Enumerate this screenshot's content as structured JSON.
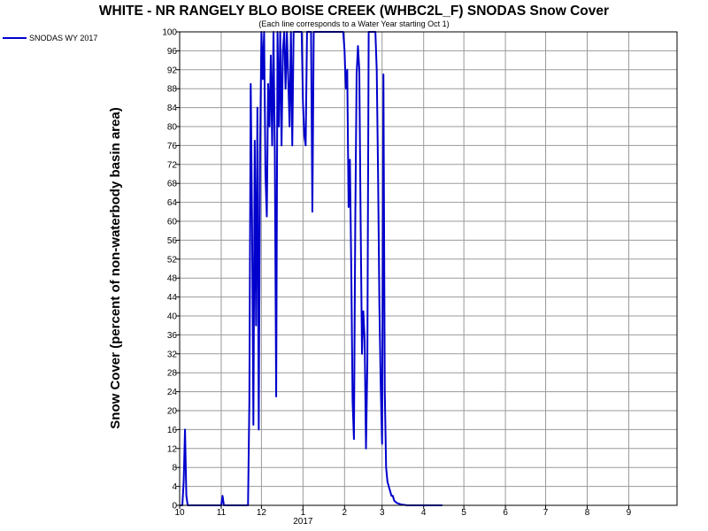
{
  "chart_data": {
    "type": "line",
    "title": "WHITE - NR RANGELY BLO BOISE CREEK (WHBC2L_F) SNODAS Snow Cover",
    "subtitle": "(Each line corresponds to a Water Year starting Oct 1)",
    "ylabel": "Snow Cover (percent of non-waterbody basin area)",
    "xlabel": "",
    "ylim": [
      0,
      100
    ],
    "y_ticks": [
      0,
      4,
      8,
      12,
      16,
      20,
      24,
      28,
      32,
      36,
      40,
      44,
      48,
      52,
      56,
      60,
      64,
      68,
      72,
      76,
      80,
      84,
      88,
      92,
      96,
      100
    ],
    "x_ticks": [
      {
        "label": "10",
        "date": "2016-10-01"
      },
      {
        "label": "11",
        "date": "2016-11-01"
      },
      {
        "label": "12",
        "date": "2016-12-01"
      },
      {
        "label": "1",
        "date": "2017-01-01"
      },
      {
        "label": "2",
        "date": "2017-02-01"
      },
      {
        "label": "3",
        "date": "2017-03-01"
      },
      {
        "label": "4",
        "date": "2017-04-01"
      },
      {
        "label": "5",
        "date": "2017-05-01"
      },
      {
        "label": "6",
        "date": "2017-06-01"
      },
      {
        "label": "7",
        "date": "2017-07-01"
      },
      {
        "label": "8",
        "date": "2017-08-01"
      },
      {
        "label": "9",
        "date": "2017-09-01"
      }
    ],
    "year_label": "2017",
    "xlim": [
      "2016-10-01",
      "2017-10-07"
    ],
    "grid": true,
    "legend_position": "top-left",
    "series": [
      {
        "name": "SNODAS WY 2017",
        "color": "#0000cc",
        "points": [
          [
            "2016-10-01",
            0
          ],
          [
            "2016-10-03",
            0
          ],
          [
            "2016-10-04",
            5
          ],
          [
            "2016-10-05",
            16
          ],
          [
            "2016-10-06",
            2
          ],
          [
            "2016-10-07",
            0
          ],
          [
            "2016-10-20",
            0
          ],
          [
            "2016-10-31",
            0
          ],
          [
            "2016-11-01",
            0
          ],
          [
            "2016-11-02",
            2
          ],
          [
            "2016-11-03",
            0
          ],
          [
            "2016-11-15",
            0
          ],
          [
            "2016-11-21",
            0
          ],
          [
            "2016-11-22",
            22
          ],
          [
            "2016-11-23",
            89
          ],
          [
            "2016-11-24",
            60
          ],
          [
            "2016-11-25",
            17
          ],
          [
            "2016-11-26",
            77
          ],
          [
            "2016-11-27",
            38
          ],
          [
            "2016-11-28",
            84
          ],
          [
            "2016-11-29",
            16
          ],
          [
            "2016-11-30",
            75
          ],
          [
            "2016-12-01",
            100
          ],
          [
            "2016-12-02",
            90
          ],
          [
            "2016-12-03",
            100
          ],
          [
            "2016-12-04",
            70
          ],
          [
            "2016-12-05",
            61
          ],
          [
            "2016-12-06",
            89
          ],
          [
            "2016-12-07",
            80
          ],
          [
            "2016-12-08",
            95
          ],
          [
            "2016-12-09",
            76
          ],
          [
            "2016-12-10",
            100
          ],
          [
            "2016-12-11",
            74
          ],
          [
            "2016-12-12",
            23
          ],
          [
            "2016-12-13",
            100
          ],
          [
            "2016-12-14",
            80
          ],
          [
            "2016-12-15",
            100
          ],
          [
            "2016-12-16",
            76
          ],
          [
            "2016-12-17",
            96
          ],
          [
            "2016-12-18",
            100
          ],
          [
            "2016-12-19",
            88
          ],
          [
            "2016-12-20",
            100
          ],
          [
            "2016-12-21",
            90
          ],
          [
            "2016-12-22",
            80
          ],
          [
            "2016-12-23",
            100
          ],
          [
            "2016-12-24",
            76
          ],
          [
            "2016-12-25",
            100
          ],
          [
            "2016-12-26",
            100
          ],
          [
            "2016-12-27",
            100
          ],
          [
            "2016-12-28",
            100
          ],
          [
            "2016-12-29",
            100
          ],
          [
            "2016-12-30",
            100
          ],
          [
            "2016-12-31",
            100
          ],
          [
            "2017-01-01",
            85
          ],
          [
            "2017-01-02",
            78
          ],
          [
            "2017-01-03",
            76
          ],
          [
            "2017-01-04",
            100
          ],
          [
            "2017-01-05",
            100
          ],
          [
            "2017-01-06",
            100
          ],
          [
            "2017-01-07",
            100
          ],
          [
            "2017-01-08",
            62
          ],
          [
            "2017-01-09",
            100
          ],
          [
            "2017-01-10",
            100
          ],
          [
            "2017-01-15",
            100
          ],
          [
            "2017-01-20",
            100
          ],
          [
            "2017-01-25",
            100
          ],
          [
            "2017-01-31",
            100
          ],
          [
            "2017-02-01",
            96
          ],
          [
            "2017-02-02",
            88
          ],
          [
            "2017-02-03",
            92
          ],
          [
            "2017-02-04",
            63
          ],
          [
            "2017-02-05",
            73
          ],
          [
            "2017-02-06",
            50
          ],
          [
            "2017-02-07",
            22
          ],
          [
            "2017-02-08",
            14
          ],
          [
            "2017-02-09",
            60
          ],
          [
            "2017-02-10",
            91
          ],
          [
            "2017-02-11",
            97
          ],
          [
            "2017-02-12",
            92
          ],
          [
            "2017-02-13",
            60
          ],
          [
            "2017-02-14",
            32
          ],
          [
            "2017-02-15",
            41
          ],
          [
            "2017-02-16",
            35
          ],
          [
            "2017-02-17",
            12
          ],
          [
            "2017-02-18",
            30
          ],
          [
            "2017-02-19",
            100
          ],
          [
            "2017-02-20",
            100
          ],
          [
            "2017-02-21",
            100
          ],
          [
            "2017-02-22",
            100
          ],
          [
            "2017-02-23",
            100
          ],
          [
            "2017-02-24",
            100
          ],
          [
            "2017-02-25",
            92
          ],
          [
            "2017-02-26",
            70
          ],
          [
            "2017-02-27",
            42
          ],
          [
            "2017-02-28",
            25
          ],
          [
            "2017-03-01",
            13
          ],
          [
            "2017-03-02",
            91
          ],
          [
            "2017-03-03",
            24
          ],
          [
            "2017-03-04",
            8
          ],
          [
            "2017-03-05",
            5
          ],
          [
            "2017-03-06",
            4
          ],
          [
            "2017-03-07",
            3
          ],
          [
            "2017-03-08",
            2
          ],
          [
            "2017-03-09",
            2
          ],
          [
            "2017-03-10",
            1
          ],
          [
            "2017-03-12",
            0.5
          ],
          [
            "2017-03-15",
            0.2
          ],
          [
            "2017-03-20",
            0
          ],
          [
            "2017-04-15",
            0
          ]
        ]
      }
    ]
  }
}
